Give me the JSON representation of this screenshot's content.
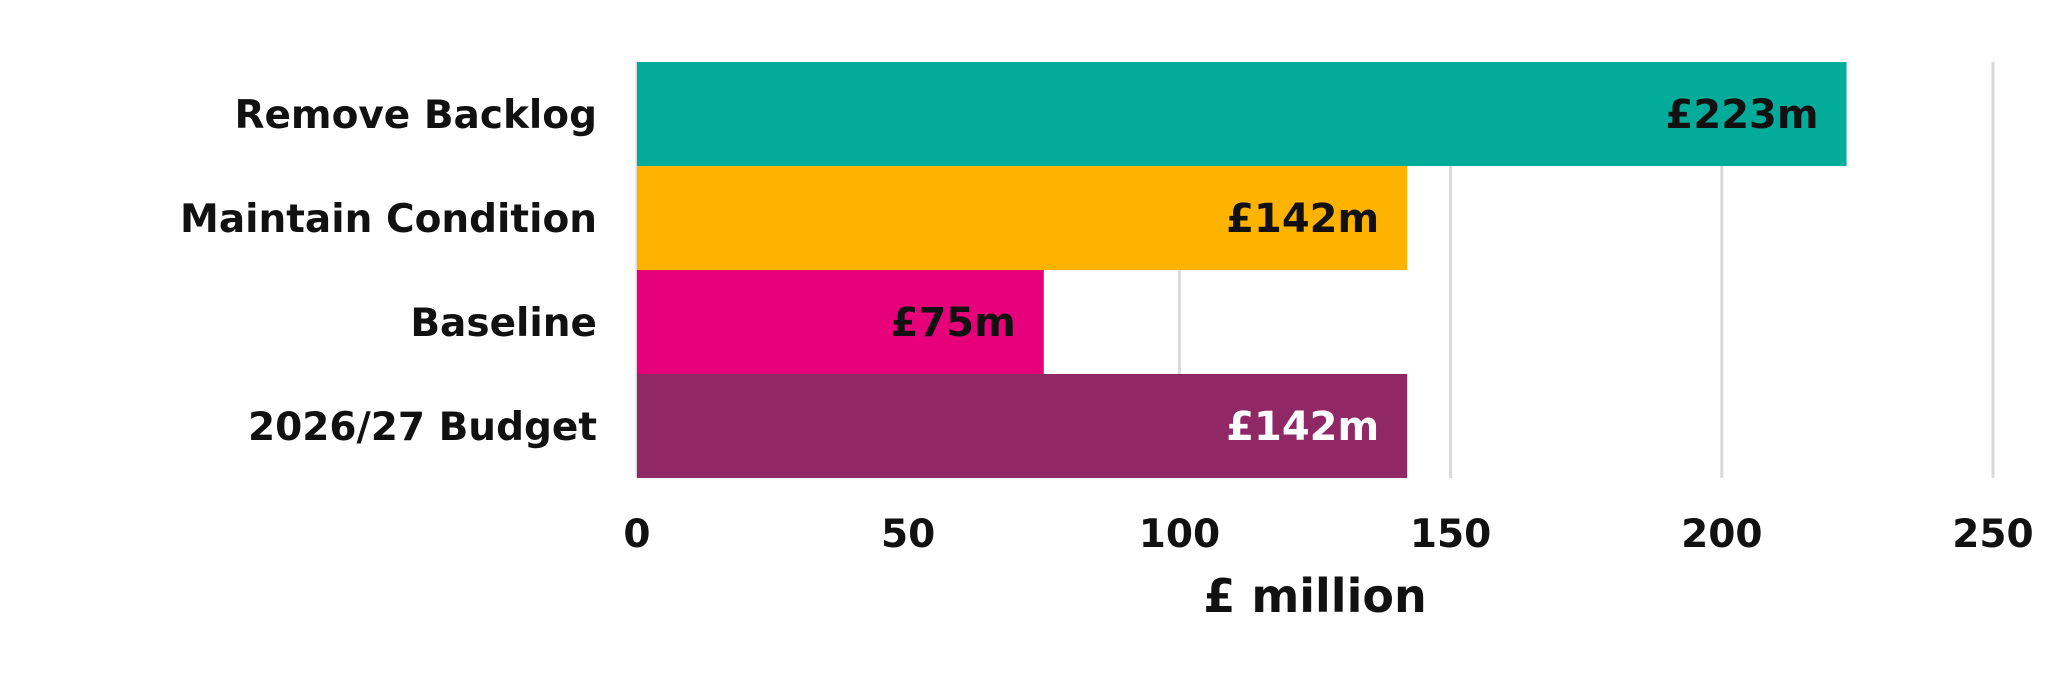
{
  "chart_data": {
    "type": "bar",
    "orientation": "horizontal",
    "categories": [
      "Remove Backlog",
      "Maintain Condition",
      "Baseline",
      "2026/27  Budget"
    ],
    "values": [
      223,
      142,
      75,
      142
    ],
    "data_labels": [
      "£223m",
      "£142m",
      "£75m",
      "£142m"
    ],
    "colors": [
      "#03AC9A",
      "#FDB300",
      "#E6007A",
      "#902866"
    ],
    "label_colors": [
      "#111111",
      "#111111",
      "#111111",
      "#ffffff"
    ],
    "xlabel": "£ million",
    "ylabel": "",
    "xlim": [
      0,
      250
    ],
    "xticks": [
      0,
      50,
      100,
      150,
      200,
      250
    ],
    "grid": true,
    "legend": false
  }
}
